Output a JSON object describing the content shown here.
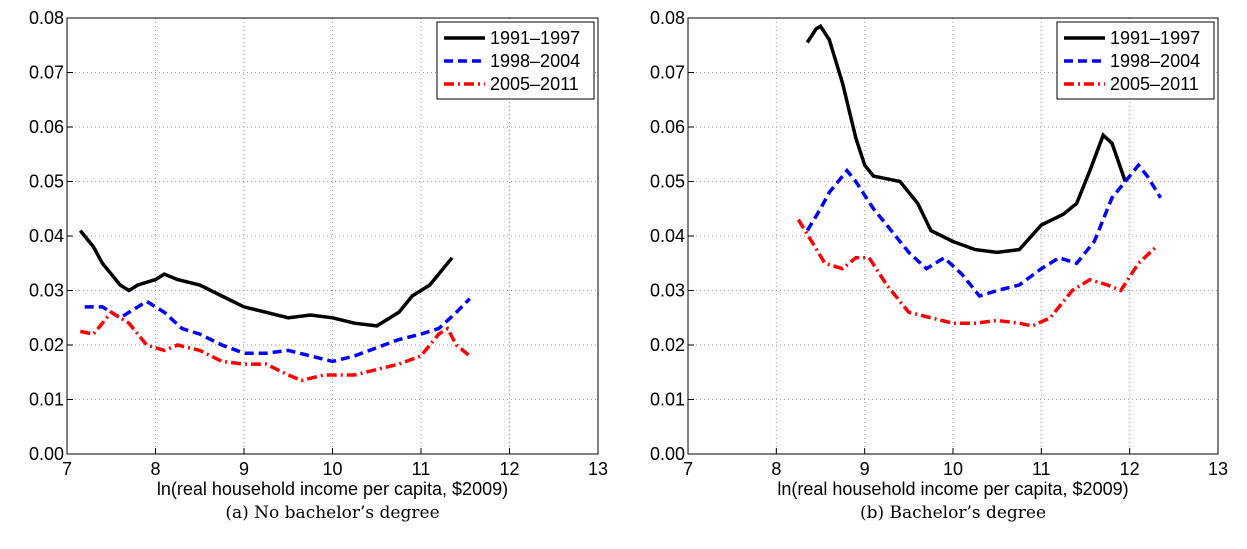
{
  "chart_data": [
    {
      "type": "line",
      "xlabel": "ln(real household income per capita, $2009)",
      "caption": "(a)  No bachelor’s degree",
      "xlim": [
        7,
        13
      ],
      "ylim": [
        0,
        0.08
      ],
      "xticks": [
        7,
        8,
        9,
        10,
        11,
        12,
        13
      ],
      "yticks": [
        {
          "value": 0,
          "label": "0.00"
        },
        0.01,
        0.02,
        0.03,
        0.04,
        0.05,
        0.06,
        0.07,
        0.08
      ],
      "grid": true,
      "legend": "upper right",
      "series": [
        {
          "name": "1991–1997",
          "color": "#000000",
          "linestyle": "solid",
          "x": [
            7.15,
            7.3,
            7.4,
            7.5,
            7.6,
            7.7,
            7.8,
            8.0,
            8.1,
            8.25,
            8.5,
            8.75,
            9,
            9.25,
            9.5,
            9.75,
            10,
            10.25,
            10.5,
            10.75,
            10.9,
            11.1,
            11.35
          ],
          "values": [
            0.041,
            0.038,
            0.035,
            0.033,
            0.031,
            0.03,
            0.031,
            0.032,
            0.033,
            0.032,
            0.031,
            0.029,
            0.027,
            0.026,
            0.025,
            0.0255,
            0.025,
            0.024,
            0.0235,
            0.026,
            0.029,
            0.031,
            0.036
          ]
        },
        {
          "name": "1998–2004",
          "color": "#0000ff",
          "linestyle": "dashed",
          "x": [
            7.2,
            7.4,
            7.6,
            7.9,
            8.1,
            8.3,
            8.5,
            8.75,
            9,
            9.25,
            9.5,
            9.75,
            10,
            10.25,
            10.5,
            10.75,
            11,
            11.2,
            11.4,
            11.55
          ],
          "values": [
            0.027,
            0.027,
            0.025,
            0.028,
            0.026,
            0.023,
            0.022,
            0.02,
            0.0185,
            0.0185,
            0.019,
            0.018,
            0.017,
            0.018,
            0.0195,
            0.021,
            0.022,
            0.023,
            0.026,
            0.0285
          ]
        },
        {
          "name": "2005–2011",
          "color": "#ff0000",
          "linestyle": "dashdot",
          "x": [
            7.15,
            7.3,
            7.5,
            7.7,
            7.9,
            8.1,
            8.25,
            8.5,
            8.75,
            9,
            9.25,
            9.5,
            9.65,
            9.9,
            10.25,
            10.5,
            10.75,
            11,
            11.2,
            11.3,
            11.4,
            11.55
          ],
          "values": [
            0.0225,
            0.022,
            0.026,
            0.024,
            0.02,
            0.019,
            0.02,
            0.019,
            0.017,
            0.0165,
            0.0165,
            0.0145,
            0.0135,
            0.0145,
            0.0145,
            0.0155,
            0.0165,
            0.018,
            0.022,
            0.023,
            0.02,
            0.018
          ]
        }
      ]
    },
    {
      "type": "line",
      "xlabel": "ln(real household income per capita, $2009)",
      "caption": "(b)  Bachelor’s degree",
      "xlim": [
        7,
        13
      ],
      "ylim": [
        0,
        0.08
      ],
      "xticks": [
        7,
        8,
        9,
        10,
        11,
        12,
        13
      ],
      "yticks": [
        {
          "value": 0,
          "label": "0.00"
        },
        0.01,
        0.02,
        0.03,
        0.04,
        0.05,
        0.06,
        0.07,
        0.08
      ],
      "grid": true,
      "legend": "upper right",
      "series": [
        {
          "name": "1991–1997",
          "color": "#000000",
          "linestyle": "solid",
          "x": [
            8.35,
            8.45,
            8.5,
            8.6,
            8.75,
            8.9,
            9,
            9.1,
            9.25,
            9.4,
            9.6,
            9.75,
            10,
            10.25,
            10.5,
            10.75,
            11,
            11.25,
            11.4,
            11.55,
            11.7,
            11.8,
            11.95
          ],
          "values": [
            0.0755,
            0.078,
            0.0785,
            0.076,
            0.068,
            0.058,
            0.053,
            0.051,
            0.0505,
            0.05,
            0.046,
            0.041,
            0.039,
            0.0375,
            0.037,
            0.0375,
            0.042,
            0.044,
            0.046,
            0.052,
            0.0585,
            0.057,
            0.05
          ]
        },
        {
          "name": "1998–2004",
          "color": "#0000ff",
          "linestyle": "dashed",
          "x": [
            8.35,
            8.5,
            8.6,
            8.8,
            8.9,
            9.1,
            9.25,
            9.5,
            9.7,
            9.9,
            10.1,
            10.3,
            10.5,
            10.75,
            11,
            11.2,
            11.4,
            11.6,
            11.8,
            12,
            12.1,
            12.2,
            12.35
          ],
          "values": [
            0.041,
            0.045,
            0.048,
            0.052,
            0.05,
            0.045,
            0.042,
            0.037,
            0.034,
            0.036,
            0.033,
            0.029,
            0.03,
            0.031,
            0.034,
            0.036,
            0.035,
            0.039,
            0.047,
            0.051,
            0.053,
            0.051,
            0.047
          ]
        },
        {
          "name": "2005–2011",
          "color": "#ff0000",
          "linestyle": "dashdot",
          "x": [
            8.25,
            8.4,
            8.55,
            8.75,
            8.9,
            9.05,
            9.25,
            9.5,
            9.75,
            10,
            10.25,
            10.5,
            10.75,
            10.9,
            11.1,
            11.35,
            11.55,
            11.75,
            11.9,
            12.1,
            12.3
          ],
          "values": [
            0.043,
            0.039,
            0.035,
            0.034,
            0.036,
            0.036,
            0.031,
            0.026,
            0.025,
            0.024,
            0.024,
            0.0245,
            0.024,
            0.0235,
            0.025,
            0.03,
            0.032,
            0.031,
            0.03,
            0.035,
            0.038
          ]
        }
      ]
    }
  ]
}
